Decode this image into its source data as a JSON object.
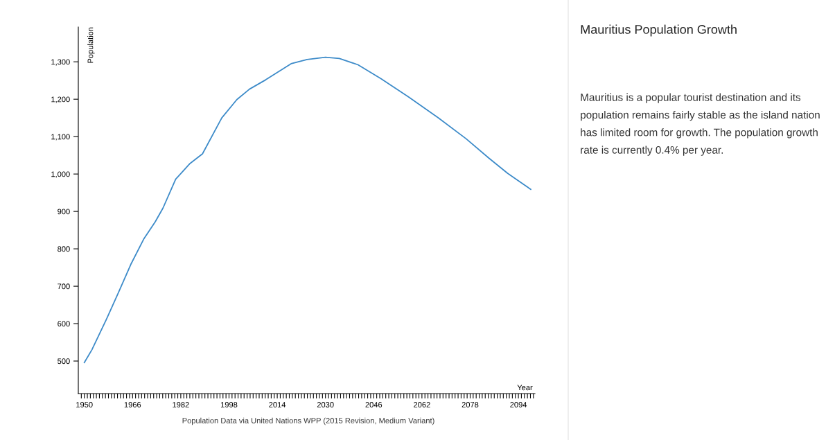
{
  "chart_data": [
    {
      "type": "line",
      "xlabel": "Year",
      "ylabel": "Population",
      "x": [
        1950,
        1952.5,
        1957.4,
        1961.2,
        1965.4,
        1969.7,
        1973.5,
        1976.1,
        1980.3,
        1984.9,
        1989.2,
        1995.6,
        2000.6,
        2004.8,
        2010.2,
        2018.6,
        2023.9,
        2030,
        2034.6,
        2040.8,
        2048.4,
        2057.6,
        2067.5,
        2076.7,
        2084.3,
        2090.4,
        2098.1
      ],
      "series": [
        {
          "color": "#3d8bc9",
          "values": [
            496,
            530,
            613,
            681,
            758,
            826,
            872,
            909,
            986,
            1027,
            1054,
            1150,
            1199,
            1227,
            1252,
            1295,
            1306,
            1312,
            1309,
            1292,
            1255,
            1206,
            1150,
            1094,
            1042,
            1002,
            959
          ]
        }
      ],
      "xlim": [
        1948,
        2099.5
      ],
      "ylim": [
        413,
        1393
      ],
      "yticks": [
        500,
        600,
        700,
        800,
        900,
        {
          "value": 1000,
          "label": "1,000"
        },
        {
          "value": 1100,
          "label": "1,100"
        },
        {
          "value": 1200,
          "label": "1,200"
        },
        {
          "value": 1300,
          "label": "1,300"
        }
      ],
      "xticks": [
        {
          "value": 1949,
          "label": null
        },
        1950,
        {
          "value": 1951,
          "label": null
        },
        {
          "value": 1952,
          "label": null
        },
        {
          "value": 1953,
          "label": null
        },
        {
          "value": 1954,
          "label": null
        },
        {
          "value": 1955,
          "label": null
        },
        {
          "value": 1956,
          "label": null
        },
        {
          "value": 1957,
          "label": null
        },
        {
          "value": 1958,
          "label": null
        },
        {
          "value": 1959,
          "label": null
        },
        {
          "value": 1960,
          "label": null
        },
        {
          "value": 1961,
          "label": null
        },
        {
          "value": 1962,
          "label": null
        },
        {
          "value": 1963,
          "label": null
        },
        {
          "value": 1964,
          "label": null
        },
        {
          "value": 1965,
          "label": null
        },
        1966,
        {
          "value": 1967,
          "label": null
        },
        {
          "value": 1968,
          "label": null
        },
        {
          "value": 1969,
          "label": null
        },
        {
          "value": 1970,
          "label": null
        },
        {
          "value": 1971,
          "label": null
        },
        {
          "value": 1972,
          "label": null
        },
        {
          "value": 1973,
          "label": null
        },
        {
          "value": 1974,
          "label": null
        },
        {
          "value": 1975,
          "label": null
        },
        {
          "value": 1976,
          "label": null
        },
        {
          "value": 1977,
          "label": null
        },
        {
          "value": 1978,
          "label": null
        },
        {
          "value": 1979,
          "label": null
        },
        {
          "value": 1980,
          "label": null
        },
        {
          "value": 1981,
          "label": null
        },
        1982,
        {
          "value": 1983,
          "label": null
        },
        {
          "value": 1984,
          "label": null
        },
        {
          "value": 1985,
          "label": null
        },
        {
          "value": 1986,
          "label": null
        },
        {
          "value": 1987,
          "label": null
        },
        {
          "value": 1988,
          "label": null
        },
        {
          "value": 1989,
          "label": null
        },
        {
          "value": 1990,
          "label": null
        },
        {
          "value": 1991,
          "label": null
        },
        {
          "value": 1992,
          "label": null
        },
        {
          "value": 1993,
          "label": null
        },
        {
          "value": 1994,
          "label": null
        },
        {
          "value": 1995,
          "label": null
        },
        {
          "value": 1996,
          "label": null
        },
        {
          "value": 1997,
          "label": null
        },
        1998,
        {
          "value": 1999,
          "label": null
        },
        {
          "value": 2000,
          "label": null
        },
        {
          "value": 2001,
          "label": null
        },
        {
          "value": 2002,
          "label": null
        },
        {
          "value": 2003,
          "label": null
        },
        {
          "value": 2004,
          "label": null
        },
        {
          "value": 2005,
          "label": null
        },
        {
          "value": 2006,
          "label": null
        },
        {
          "value": 2007,
          "label": null
        },
        {
          "value": 2008,
          "label": null
        },
        {
          "value": 2009,
          "label": null
        },
        {
          "value": 2010,
          "label": null
        },
        {
          "value": 2011,
          "label": null
        },
        {
          "value": 2012,
          "label": null
        },
        {
          "value": 2013,
          "label": null
        },
        2014,
        {
          "value": 2015,
          "label": null
        },
        {
          "value": 2016,
          "label": null
        },
        {
          "value": 2017,
          "label": null
        },
        {
          "value": 2018,
          "label": null
        },
        {
          "value": 2019,
          "label": null
        },
        {
          "value": 2020,
          "label": null
        },
        {
          "value": 2021,
          "label": null
        },
        {
          "value": 2022,
          "label": null
        },
        {
          "value": 2023,
          "label": null
        },
        {
          "value": 2024,
          "label": null
        },
        {
          "value": 2025,
          "label": null
        },
        {
          "value": 2026,
          "label": null
        },
        {
          "value": 2027,
          "label": null
        },
        {
          "value": 2028,
          "label": null
        },
        {
          "value": 2029,
          "label": null
        },
        2030,
        {
          "value": 2031,
          "label": null
        },
        {
          "value": 2032,
          "label": null
        },
        {
          "value": 2033,
          "label": null
        },
        {
          "value": 2034,
          "label": null
        },
        {
          "value": 2035,
          "label": null
        },
        {
          "value": 2036,
          "label": null
        },
        {
          "value": 2037,
          "label": null
        },
        {
          "value": 2038,
          "label": null
        },
        {
          "value": 2039,
          "label": null
        },
        {
          "value": 2040,
          "label": null
        },
        {
          "value": 2041,
          "label": null
        },
        {
          "value": 2042,
          "label": null
        },
        {
          "value": 2043,
          "label": null
        },
        {
          "value": 2044,
          "label": null
        },
        {
          "value": 2045,
          "label": null
        },
        2046,
        {
          "value": 2047,
          "label": null
        },
        {
          "value": 2048,
          "label": null
        },
        {
          "value": 2049,
          "label": null
        },
        {
          "value": 2050,
          "label": null
        },
        {
          "value": 2051,
          "label": null
        },
        {
          "value": 2052,
          "label": null
        },
        {
          "value": 2053,
          "label": null
        },
        {
          "value": 2054,
          "label": null
        },
        {
          "value": 2055,
          "label": null
        },
        {
          "value": 2056,
          "label": null
        },
        {
          "value": 2057,
          "label": null
        },
        {
          "value": 2058,
          "label": null
        },
        {
          "value": 2059,
          "label": null
        },
        {
          "value": 2060,
          "label": null
        },
        {
          "value": 2061,
          "label": null
        },
        2062,
        {
          "value": 2063,
          "label": null
        },
        {
          "value": 2064,
          "label": null
        },
        {
          "value": 2065,
          "label": null
        },
        {
          "value": 2066,
          "label": null
        },
        {
          "value": 2067,
          "label": null
        },
        {
          "value": 2068,
          "label": null
        },
        {
          "value": 2069,
          "label": null
        },
        {
          "value": 2070,
          "label": null
        },
        {
          "value": 2071,
          "label": null
        },
        {
          "value": 2072,
          "label": null
        },
        {
          "value": 2073,
          "label": null
        },
        {
          "value": 2074,
          "label": null
        },
        {
          "value": 2075,
          "label": null
        },
        {
          "value": 2076,
          "label": null
        },
        {
          "value": 2077,
          "label": null
        },
        2078,
        {
          "value": 2079,
          "label": null
        },
        {
          "value": 2080,
          "label": null
        },
        {
          "value": 2081,
          "label": null
        },
        {
          "value": 2082,
          "label": null
        },
        {
          "value": 2083,
          "label": null
        },
        {
          "value": 2084,
          "label": null
        },
        {
          "value": 2085,
          "label": null
        },
        {
          "value": 2086,
          "label": null
        },
        {
          "value": 2087,
          "label": null
        },
        {
          "value": 2088,
          "label": null
        },
        {
          "value": 2089,
          "label": null
        },
        {
          "value": 2090,
          "label": null
        },
        {
          "value": 2091,
          "label": null
        },
        {
          "value": 2092,
          "label": null
        },
        {
          "value": 2093,
          "label": null
        },
        2094,
        {
          "value": 2095,
          "label": null
        },
        {
          "value": 2096,
          "label": null
        },
        {
          "value": 2097,
          "label": null
        },
        {
          "value": 2098,
          "label": null
        },
        {
          "value": 2099,
          "label": null
        }
      ],
      "grid": false,
      "annotations": [
        "Population Data via United Nations WPP (2015 Revision, Medium Variant)"
      ]
    },
    {
      "type": "other",
      "title": "Mauritius Population Growth",
      "annotations": [
        "Mauritius is a popular tourist destination and its population remains fairly stable as the island nation has limited room for growth. The population growth rate is currently 0.4% per year."
      ]
    }
  ]
}
